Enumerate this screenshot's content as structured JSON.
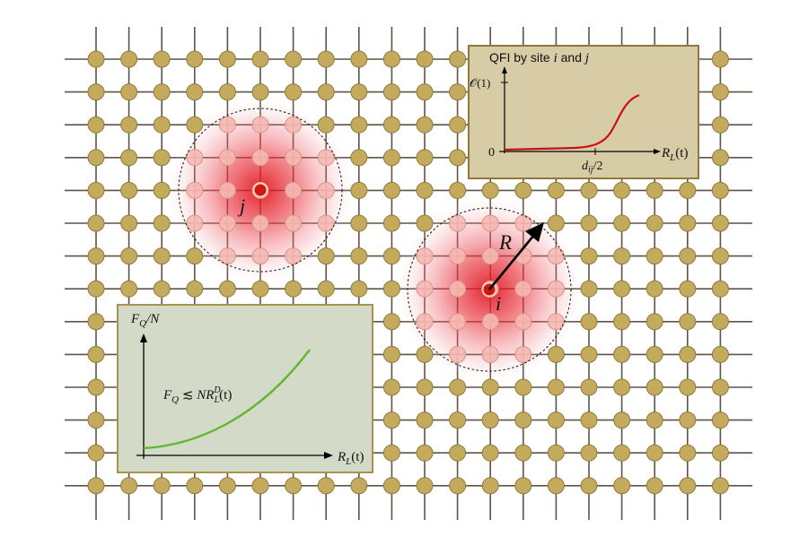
{
  "colors": {
    "lattice_line": "#5c5448",
    "site_fill": "#c4aa5c",
    "site_stroke": "#8f7a3c",
    "glow": "#e5151a",
    "center_site": "#cc1a10",
    "inset_top_bg": "#d8cca6",
    "inset_top_border": "#8f7a3c",
    "inset_top_curve": "#c71212",
    "inset_bottom_bg": "#d3dac8",
    "inset_bottom_border": "#a8924e",
    "inset_bottom_curve": "#5cb82e"
  },
  "site_labels": {
    "j": "j",
    "i": "i",
    "radius": "R"
  },
  "inset_qfi": {
    "title_prefix": "QFI by site ",
    "title_i": "i",
    "title_and": " and ",
    "title_j": "j",
    "y_tick_top": "𝒪(1)",
    "y_tick_zero": "0",
    "x_tick_base": "d",
    "x_tick_sub": "ij",
    "x_tick_suffix": "/2",
    "x_label_base": "R",
    "x_label_sub": "L",
    "x_label_suffix": "(t)"
  },
  "inset_fisher": {
    "y_label_base": "F",
    "y_label_sub": "Q",
    "y_label_suffix": "/N",
    "eq_lhs_base": "F",
    "eq_lhs_sub": "Q",
    "eq_rel": " ≲ ",
    "eq_rhs_base": "NR",
    "eq_rhs_sup": "D",
    "eq_rhs_sub": "L",
    "eq_rhs_suffix": "(t)",
    "x_label_base": "R",
    "x_label_sub": "L",
    "x_label_suffix": "(t)"
  }
}
